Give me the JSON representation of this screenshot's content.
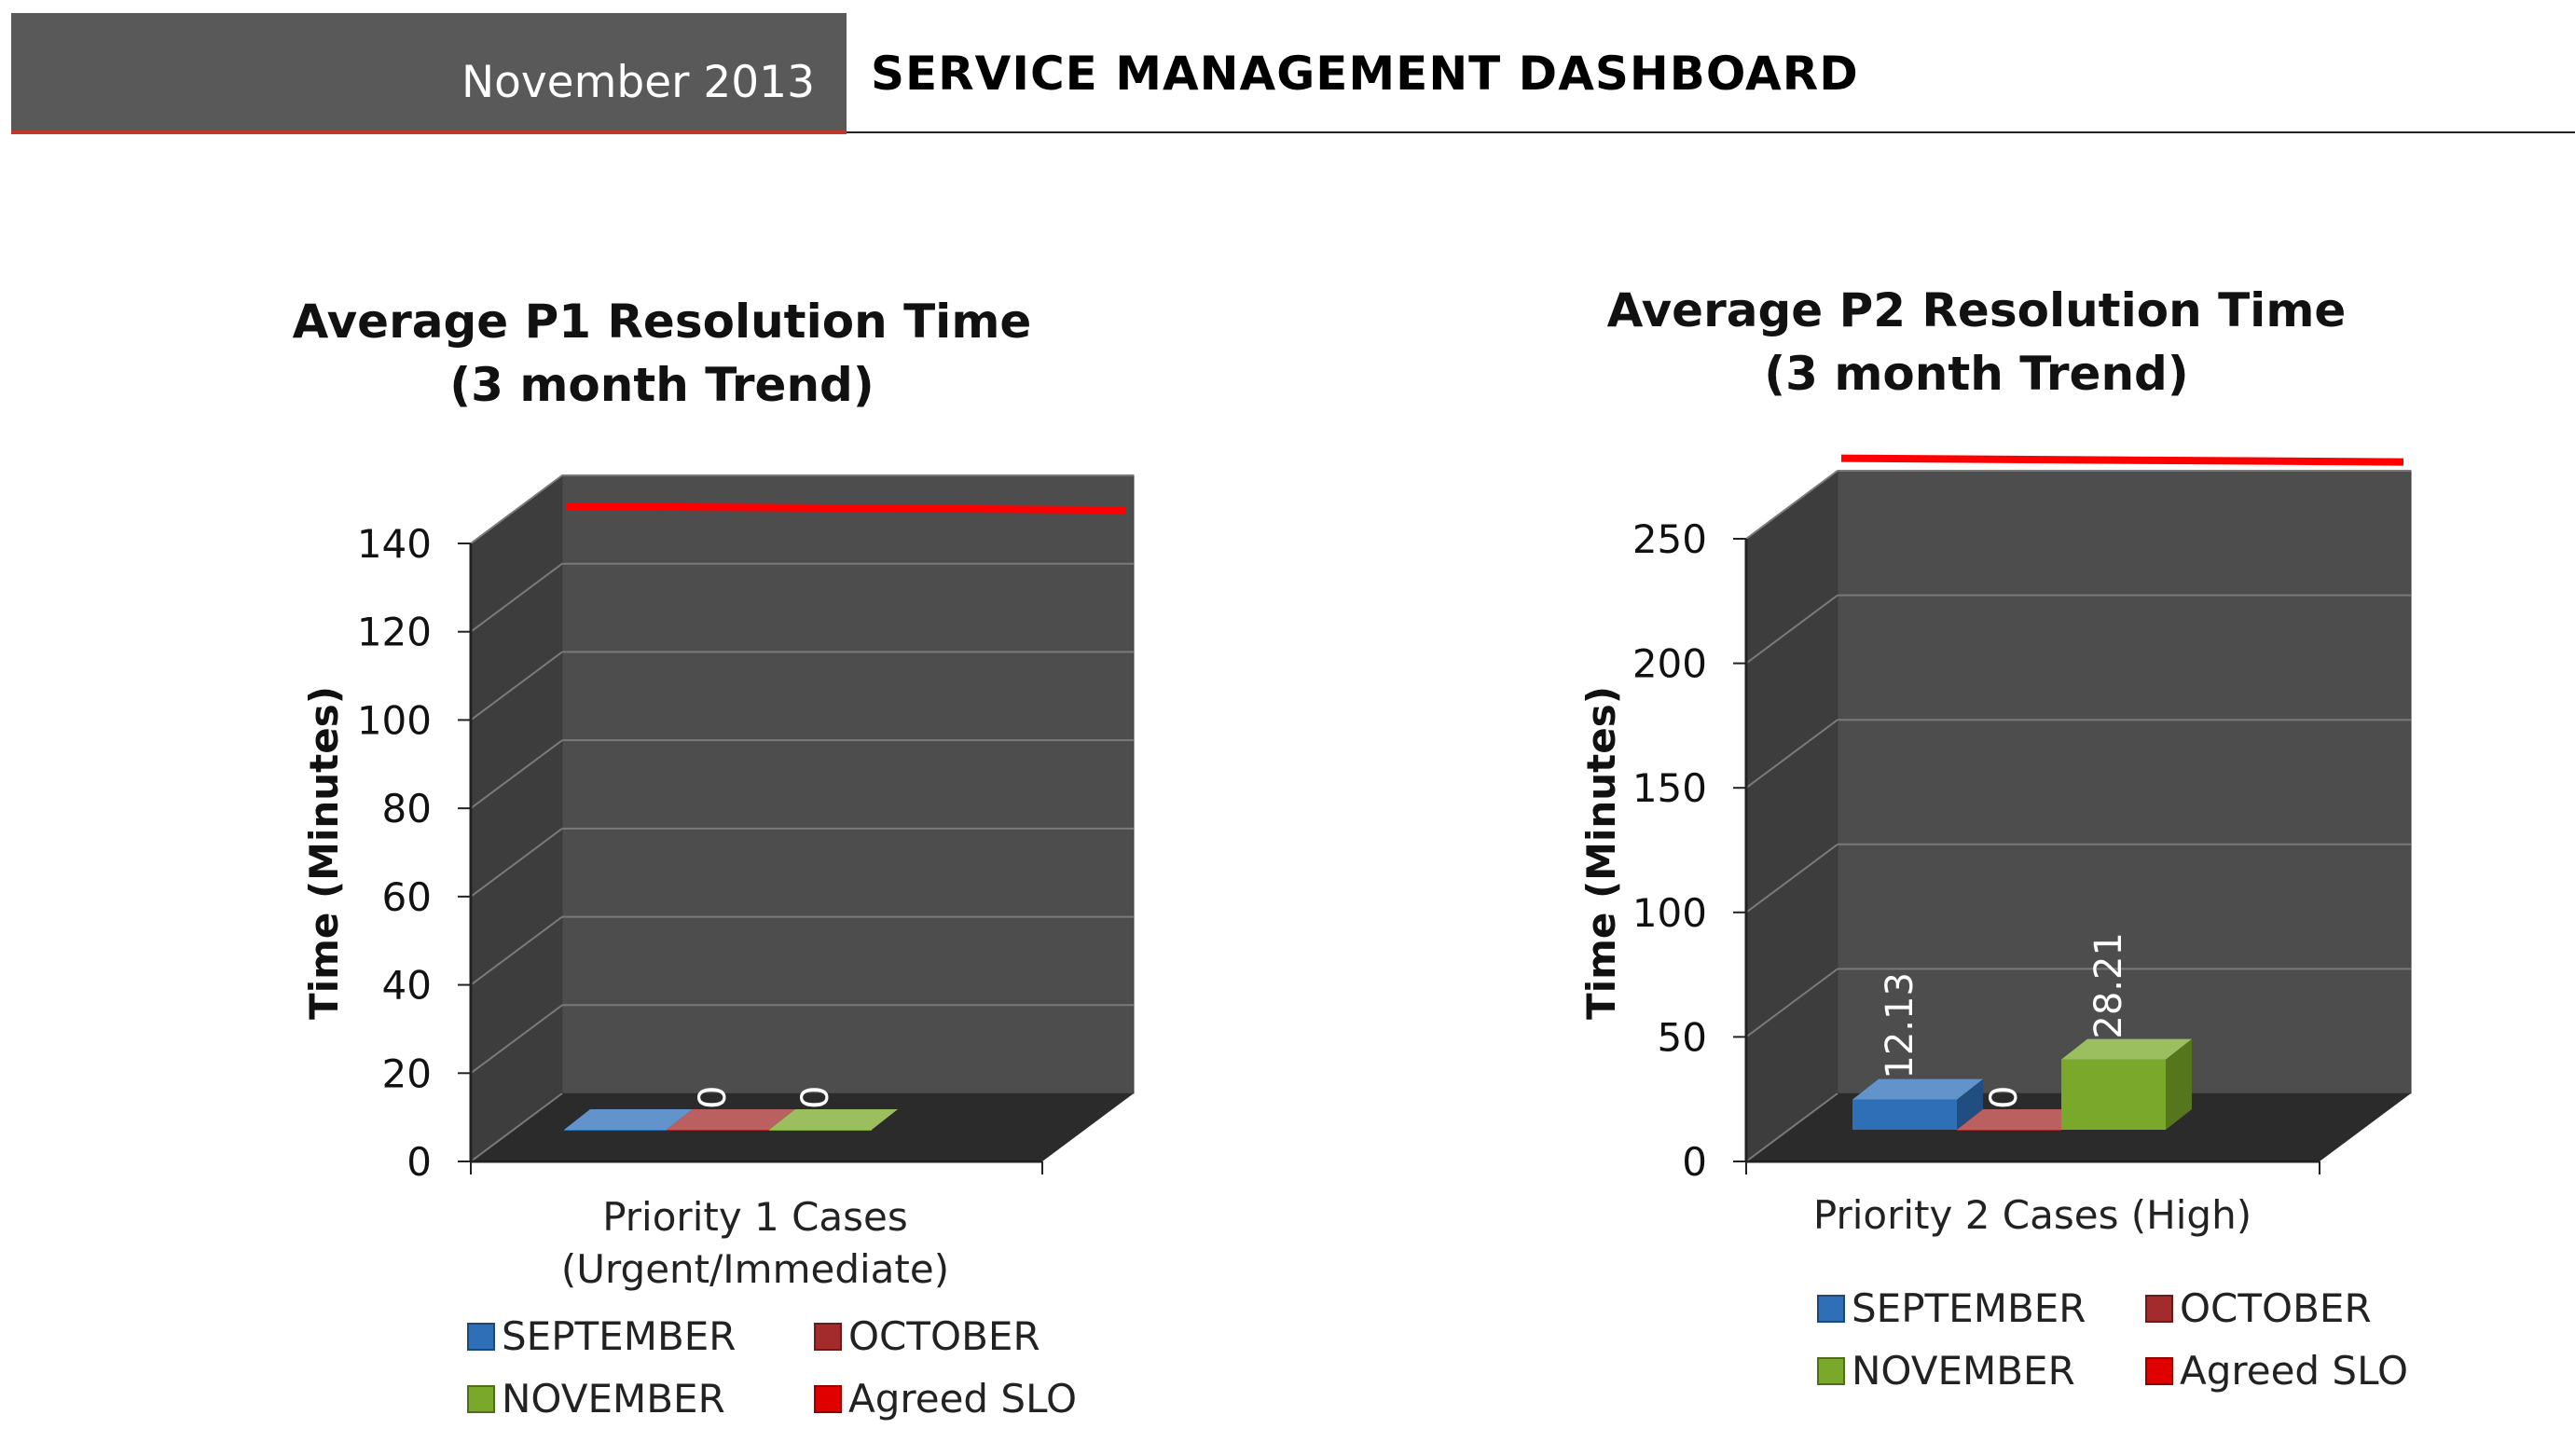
{
  "header": {
    "date": "November 2013",
    "title": "SERVICE MANAGEMENT DASHBOARD"
  },
  "chart_data": [
    {
      "type": "bar",
      "title": "Average P1 Resolution Time",
      "subtitle": "(3 month Trend)",
      "ylabel": "Time (Minutes)",
      "xlabel": "",
      "categories": [
        "Priority 1 Cases (Urgent/Immediate)"
      ],
      "category_lines": [
        "Priority 1 Cases",
        "(Urgent/Immediate)"
      ],
      "ylim": [
        0,
        140
      ],
      "yticks": [
        "0",
        "20",
        "40",
        "60",
        "80",
        "100",
        "120",
        "140"
      ],
      "series": [
        {
          "name": "SEPTEMBER",
          "values": [
            0
          ],
          "color": "#2e6fb8",
          "data_label": ""
        },
        {
          "name": "OCTOBER",
          "values": [
            0
          ],
          "color": "#a32b2b",
          "data_label": "0"
        },
        {
          "name": "NOVEMBER",
          "values": [
            0
          ],
          "color": "#7aa82a",
          "data_label": "0"
        }
      ],
      "reference_line": {
        "name": "Agreed SLO",
        "value": 133,
        "color": "#ff0000"
      },
      "legend_placement": "bottom",
      "grid": true
    },
    {
      "type": "bar",
      "title": "Average P2 Resolution Time",
      "subtitle": "(3 month Trend)",
      "ylabel": "Time (Minutes)",
      "xlabel": "",
      "categories": [
        "Priority 2 Cases (High)"
      ],
      "category_lines": [
        "Priority 2 Cases (High)"
      ],
      "ylim": [
        0,
        250
      ],
      "yticks": [
        "0",
        "50",
        "100",
        "150",
        "200",
        "250"
      ],
      "series": [
        {
          "name": "SEPTEMBER",
          "values": [
            12.13
          ],
          "color": "#2e6fb8",
          "data_label": "12.13"
        },
        {
          "name": "OCTOBER",
          "values": [
            0
          ],
          "color": "#a32b2b",
          "data_label": "0"
        },
        {
          "name": "NOVEMBER",
          "values": [
            28.21
          ],
          "color": "#7aa82a",
          "data_label": "28.21"
        }
      ],
      "reference_line": {
        "name": "Agreed SLO",
        "value": 255,
        "color": "#ff0000"
      },
      "legend_placement": "bottom",
      "grid": true
    }
  ]
}
